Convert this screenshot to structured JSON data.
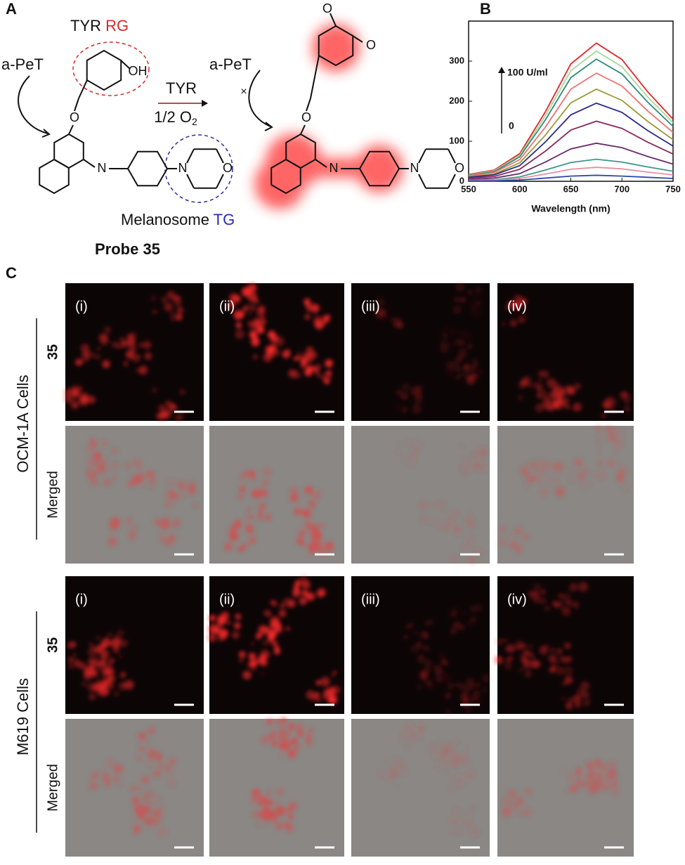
{
  "panel_a": {
    "label": "A",
    "rg_prefix": "TYR ",
    "rg": "RG",
    "apet_left": "a-PeT",
    "oh": "OH",
    "ether_left": "O",
    "imine_left": "N",
    "amine_left": "N",
    "morph_o_left": "O",
    "arrow_top": "TYR",
    "arrow_bottom": "1/2 O",
    "arrow_sub": "2",
    "apet_right": "a-PeT",
    "keto_1": "O",
    "keto_2": "O",
    "ether_right": "O",
    "imine_right": "N",
    "amine_right": "N",
    "morph_o_right": "O",
    "tg_prefix": "Melanosome ",
    "tg": "TG",
    "probe": "Probe 35"
  },
  "panel_b": {
    "label": "B"
  },
  "chart_data": {
    "type": "line",
    "xlabel": "Wavelength (nm)",
    "annotation_top": "100 U/ml",
    "annotation_bottom": "0",
    "x": [
      550,
      575,
      600,
      625,
      650,
      675,
      700,
      725,
      750
    ],
    "xlim": [
      550,
      750
    ],
    "xticks": [
      550,
      600,
      650,
      700,
      750
    ],
    "ylim": [
      0,
      400
    ],
    "yticks": [
      0,
      100,
      200,
      300
    ],
    "series": [
      {
        "color": "#e0262a",
        "values": [
          17,
          28,
          69,
          173,
          293,
          345,
          304,
          224,
          155
        ]
      },
      {
        "color": "#a8d89a",
        "values": [
          16,
          26,
          65,
          163,
          276,
          325,
          286,
          211,
          146
        ]
      },
      {
        "color": "#2a8a7a",
        "values": [
          15,
          24,
          61,
          153,
          259,
          305,
          268,
          198,
          137
        ]
      },
      {
        "color": "#f07070",
        "values": [
          14,
          22,
          54,
          135,
          230,
          270,
          238,
          176,
          122
        ]
      },
      {
        "color": "#9a9a3a",
        "values": [
          12,
          18,
          46,
          115,
          196,
          230,
          202,
          150,
          104
        ]
      },
      {
        "color": "#2a2a8a",
        "values": [
          10,
          16,
          39,
          98,
          166,
          195,
          172,
          127,
          88
        ]
      },
      {
        "color": "#8a2a5a",
        "values": [
          8,
          12,
          30,
          75,
          128,
          150,
          132,
          98,
          68
        ]
      },
      {
        "color": "#6a2a6a",
        "values": [
          5,
          8,
          19,
          48,
          81,
          95,
          84,
          62,
          43
        ]
      },
      {
        "color": "#3a9a8a",
        "values": [
          3,
          4,
          11,
          28,
          47,
          55,
          48,
          36,
          25
        ]
      },
      {
        "color": "#e890a0",
        "values": [
          2,
          3,
          7,
          18,
          30,
          35,
          31,
          23,
          16
        ]
      },
      {
        "color": "#2a4aaa",
        "values": [
          1,
          1,
          3,
          8,
          13,
          15,
          13,
          10,
          7
        ]
      }
    ]
  },
  "panel_c": {
    "label": "C",
    "columns": [
      "(i)",
      "(ii)",
      "(iii)",
      "(iv)"
    ],
    "groups": [
      {
        "cell": "OCM-1A Cells",
        "rows": [
          "35",
          "Merged"
        ]
      },
      {
        "cell": "M619 Cells",
        "rows": [
          "35",
          "Merged"
        ]
      }
    ]
  }
}
